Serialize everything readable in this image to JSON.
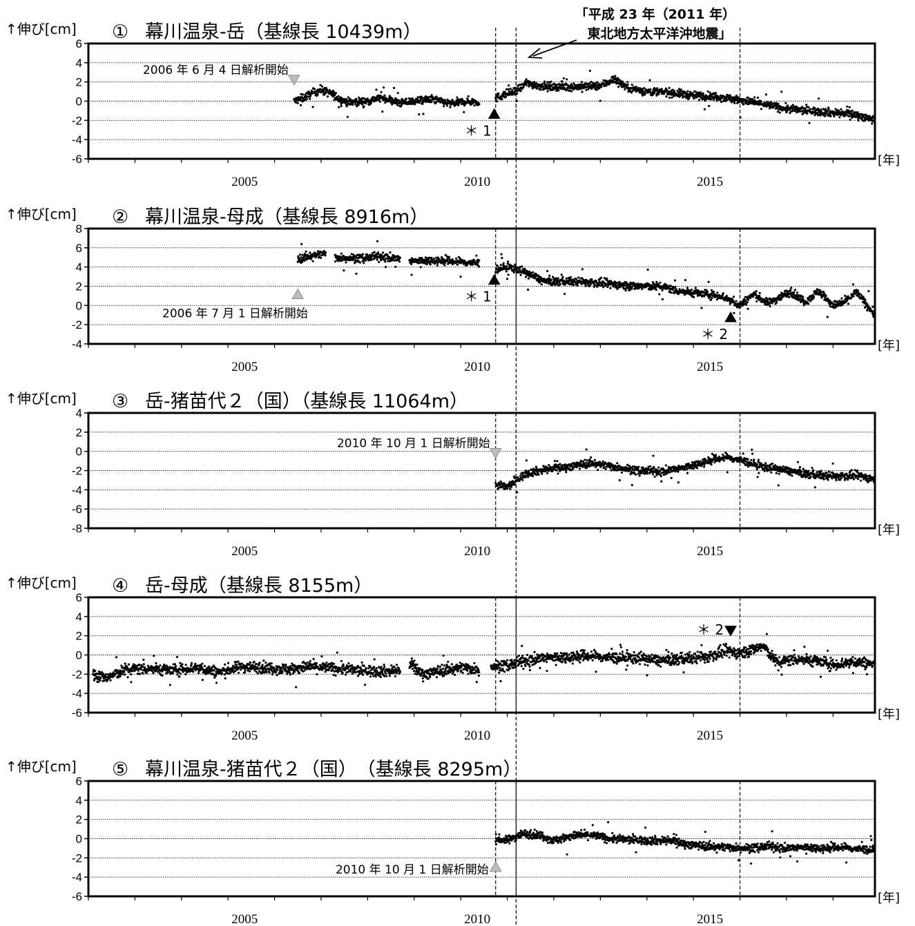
{
  "earthquake_annotation": {
    "line1": "「平成 23 年（2011 年）",
    "line2": "東北地方太平洋沖地震」",
    "date": 2011.19
  },
  "axis_unit_label": "[年]",
  "chart_data": [
    {
      "type": "scatter",
      "number": "①",
      "title": "幕川温泉-岳（基線長 10439m）",
      "ylabel": "↑伸び[cm]",
      "ylim": [
        -6,
        6
      ],
      "yticks": [
        -6,
        -4,
        -2,
        0,
        2,
        4,
        6
      ],
      "xlim": [
        2002,
        2018.9
      ],
      "xticks": [
        2005,
        2010,
        2015
      ],
      "dashed_lines": [
        2010.75,
        2011.19,
        2016.0
      ],
      "analysis_start": {
        "label": "2006 年 6 月 4 日解析開始",
        "date": 2006.42,
        "marker": "down"
      },
      "events": [
        {
          "label": "＊ 1",
          "date": 2010.72,
          "value": -1.8,
          "marker": "up",
          "label_side": "below-left"
        }
      ],
      "series": [
        {
          "values": [
            [
              2006.42,
              0.0
            ],
            [
              2006.6,
              0.3
            ],
            [
              2006.8,
              0.8
            ],
            [
              2007.0,
              1.2
            ],
            [
              2007.25,
              0.7
            ],
            [
              2007.4,
              0.2
            ],
            [
              2007.6,
              -0.1
            ],
            [
              2008.0,
              0.0
            ],
            [
              2008.3,
              0.4
            ],
            [
              2008.7,
              -0.2
            ],
            [
              2009.0,
              0.0
            ],
            [
              2009.4,
              0.2
            ],
            [
              2009.8,
              -0.3
            ],
            [
              2010.1,
              0.0
            ],
            [
              2010.4,
              -0.1
            ],
            [
              null,
              null
            ],
            [
              2010.75,
              0.3
            ],
            [
              2011.0,
              0.8
            ],
            [
              2011.2,
              1.0
            ],
            [
              2011.4,
              1.9
            ],
            [
              2011.7,
              1.6
            ],
            [
              2012.0,
              1.5
            ],
            [
              2012.5,
              1.5
            ],
            [
              2013.0,
              1.6
            ],
            [
              2013.3,
              2.3
            ],
            [
              2013.6,
              1.4
            ],
            [
              2014.0,
              1.0
            ],
            [
              2014.5,
              0.9
            ],
            [
              2015.0,
              0.6
            ],
            [
              2015.5,
              0.5
            ],
            [
              2016.0,
              0.1
            ],
            [
              2016.5,
              -0.3
            ],
            [
              2017.0,
              -0.8
            ],
            [
              2017.5,
              -1.0
            ],
            [
              2018.0,
              -1.2
            ],
            [
              2018.5,
              -1.4
            ],
            [
              2018.9,
              -2.0
            ]
          ]
        }
      ]
    },
    {
      "type": "scatter",
      "number": "②",
      "title": "幕川温泉-母成（基線長 8916m）",
      "ylabel": "↑伸び[cm]",
      "ylim": [
        -4,
        8
      ],
      "yticks": [
        -4,
        -2,
        0,
        2,
        4,
        6,
        8
      ],
      "xlim": [
        2002,
        2018.9
      ],
      "xticks": [
        2005,
        2010,
        2015
      ],
      "dashed_lines": [
        2010.75,
        2011.19,
        2016.0
      ],
      "analysis_start": {
        "label": "2006 年 7 月 1 日解析開始",
        "date": 2006.5,
        "marker": "up"
      },
      "events": [
        {
          "label": "＊ 1",
          "date": 2010.72,
          "value": 2.2,
          "marker": "up",
          "label_side": "below-left"
        },
        {
          "label": "＊ 2",
          "date": 2015.8,
          "value": -1.7,
          "marker": "up",
          "label_side": "below-left"
        }
      ],
      "series": [
        {
          "values": [
            [
              2006.5,
              4.8
            ],
            [
              2006.8,
              5.2
            ],
            [
              2007.1,
              5.4
            ],
            [
              null,
              null
            ],
            [
              2007.3,
              5.0
            ],
            [
              2007.8,
              4.9
            ],
            [
              2008.3,
              5.1
            ],
            [
              2008.7,
              4.8
            ],
            [
              null,
              null
            ],
            [
              2008.9,
              4.6
            ],
            [
              2009.4,
              4.7
            ],
            [
              2009.8,
              4.6
            ],
            [
              2010.4,
              4.4
            ],
            [
              null,
              null
            ],
            [
              2010.75,
              3.8
            ],
            [
              2011.0,
              4.0
            ],
            [
              2011.2,
              3.8
            ],
            [
              2011.5,
              3.2
            ],
            [
              2011.8,
              2.5
            ],
            [
              2012.3,
              2.5
            ],
            [
              2012.8,
              2.4
            ],
            [
              2013.3,
              2.2
            ],
            [
              2013.8,
              2.0
            ],
            [
              2014.3,
              2.0
            ],
            [
              2014.7,
              1.5
            ],
            [
              2015.2,
              1.2
            ],
            [
              2015.6,
              1.0
            ],
            [
              2016.0,
              0.0
            ],
            [
              2016.3,
              1.2
            ],
            [
              2016.6,
              0.2
            ],
            [
              2016.9,
              1.0
            ],
            [
              2017.1,
              1.4
            ],
            [
              2017.4,
              0.4
            ],
            [
              2017.7,
              1.5
            ],
            [
              2018.0,
              0.0
            ],
            [
              2018.2,
              0.2
            ],
            [
              2018.5,
              1.4
            ],
            [
              2018.9,
              -1.0
            ]
          ]
        }
      ]
    },
    {
      "type": "scatter",
      "number": "③",
      "title": "岳-猪苗代２（国）（基線長 11064m）",
      "ylabel": "↑伸び[cm]",
      "ylim": [
        -8,
        4
      ],
      "yticks": [
        -8,
        -6,
        -4,
        -2,
        0,
        2,
        4
      ],
      "xlim": [
        2002,
        2018.9
      ],
      "xticks": [
        2005,
        2010,
        2015
      ],
      "dashed_lines": [
        2010.75,
        2011.19,
        2016.0
      ],
      "analysis_start": {
        "label": "2010 年 10 月 1 日解析開始",
        "date": 2010.75,
        "marker": "down"
      },
      "events": [],
      "series": [
        {
          "values": [
            [
              2010.75,
              -3.5
            ],
            [
              2011.0,
              -3.7
            ],
            [
              2011.15,
              -3.2
            ],
            [
              2011.4,
              -2.3
            ],
            [
              2011.8,
              -1.9
            ],
            [
              2012.3,
              -1.6
            ],
            [
              2012.8,
              -1.2
            ],
            [
              2013.3,
              -1.6
            ],
            [
              2013.8,
              -2.0
            ],
            [
              2014.3,
              -2.1
            ],
            [
              2014.8,
              -1.7
            ],
            [
              2015.3,
              -1.0
            ],
            [
              2015.7,
              -0.6
            ],
            [
              2016.0,
              -0.9
            ],
            [
              2016.5,
              -1.6
            ],
            [
              2017.0,
              -2.0
            ],
            [
              2017.5,
              -2.4
            ],
            [
              2018.0,
              -2.6
            ],
            [
              2018.5,
              -2.5
            ],
            [
              2018.9,
              -2.9
            ]
          ]
        }
      ]
    },
    {
      "type": "scatter",
      "number": "④",
      "title": "岳-母成（基線長 8155m）",
      "ylabel": "↑伸び[cm]",
      "ylim": [
        -6,
        6
      ],
      "yticks": [
        -6,
        -4,
        -2,
        0,
        2,
        4,
        6
      ],
      "xlim": [
        2002,
        2018.9
      ],
      "xticks": [
        2005,
        2010,
        2015
      ],
      "dashed_lines": [
        2010.75,
        2011.19,
        2016.0
      ],
      "analysis_start": null,
      "events": [
        {
          "label": "＊ 2",
          "date": 2015.8,
          "value": 3.0,
          "marker": "down",
          "label_side": "left"
        }
      ],
      "series": [
        {
          "values": [
            [
              2002.1,
              -2.0
            ],
            [
              2002.4,
              -2.4
            ],
            [
              2002.8,
              -1.5
            ],
            [
              2003.3,
              -1.4
            ],
            [
              2003.8,
              -1.6
            ],
            [
              2004.3,
              -1.3
            ],
            [
              2004.8,
              -1.8
            ],
            [
              2005.3,
              -1.2
            ],
            [
              2005.8,
              -1.3
            ],
            [
              2006.3,
              -1.5
            ],
            [
              2006.8,
              -1.2
            ],
            [
              2007.3,
              -1.4
            ],
            [
              2007.8,
              -1.6
            ],
            [
              2008.3,
              -1.7
            ],
            [
              2008.7,
              -1.6
            ],
            [
              null,
              null
            ],
            [
              2008.9,
              -1.0
            ],
            [
              2009.2,
              -2.0
            ],
            [
              2009.6,
              -1.6
            ],
            [
              2010.0,
              -1.3
            ],
            [
              2010.4,
              -1.5
            ],
            [
              null,
              null
            ],
            [
              2010.65,
              -1.2
            ],
            [
              2011.0,
              -1.1
            ],
            [
              2011.4,
              -0.6
            ],
            [
              2011.8,
              -0.3
            ],
            [
              2012.3,
              -0.2
            ],
            [
              2012.8,
              -0.1
            ],
            [
              2013.3,
              -0.3
            ],
            [
              2013.8,
              -0.3
            ],
            [
              2014.3,
              -0.6
            ],
            [
              2014.8,
              -0.4
            ],
            [
              2015.3,
              -0.2
            ],
            [
              2015.7,
              0.4
            ],
            [
              2016.0,
              0.2
            ],
            [
              2016.5,
              0.9
            ],
            [
              2016.8,
              -0.8
            ],
            [
              2017.2,
              -0.4
            ],
            [
              2017.6,
              -0.6
            ],
            [
              2018.0,
              -1.0
            ],
            [
              2018.5,
              -0.7
            ],
            [
              2018.9,
              -1.0
            ]
          ]
        }
      ]
    },
    {
      "type": "scatter",
      "number": "⑤",
      "title": "幕川温泉-猪苗代２（国）　（基線長 8295m）",
      "ylabel": "↑伸び[cm]",
      "ylim": [
        -6,
        6
      ],
      "yticks": [
        -6,
        -4,
        -2,
        0,
        2,
        4,
        6
      ],
      "xlim": [
        2002,
        2018.9
      ],
      "xticks": [
        2005,
        2010,
        2015
      ],
      "dashed_lines": [
        2010.75,
        2011.19,
        2016.0
      ],
      "analysis_start": {
        "label": "2010 年 10 月 1 日解析開始",
        "date": 2010.75,
        "marker": "up"
      },
      "events": [],
      "series": [
        {
          "values": [
            [
              2010.75,
              0.0
            ],
            [
              2011.0,
              -0.2
            ],
            [
              2011.3,
              0.5
            ],
            [
              2011.7,
              0.4
            ],
            [
              2012.0,
              -0.2
            ],
            [
              2012.4,
              0.3
            ],
            [
              2012.8,
              0.4
            ],
            [
              2013.2,
              0.0
            ],
            [
              2013.6,
              -0.1
            ],
            [
              2014.0,
              -0.2
            ],
            [
              2014.5,
              -0.2
            ],
            [
              2014.9,
              -0.6
            ],
            [
              2015.3,
              -0.8
            ],
            [
              2015.8,
              -0.9
            ],
            [
              2016.2,
              -1.0
            ],
            [
              2016.6,
              -0.8
            ],
            [
              2017.0,
              -1.0
            ],
            [
              2017.4,
              -0.9
            ],
            [
              2017.8,
              -1.0
            ],
            [
              2018.2,
              -0.9
            ],
            [
              2018.6,
              -1.1
            ],
            [
              2018.9,
              -1.2
            ]
          ]
        }
      ]
    }
  ]
}
